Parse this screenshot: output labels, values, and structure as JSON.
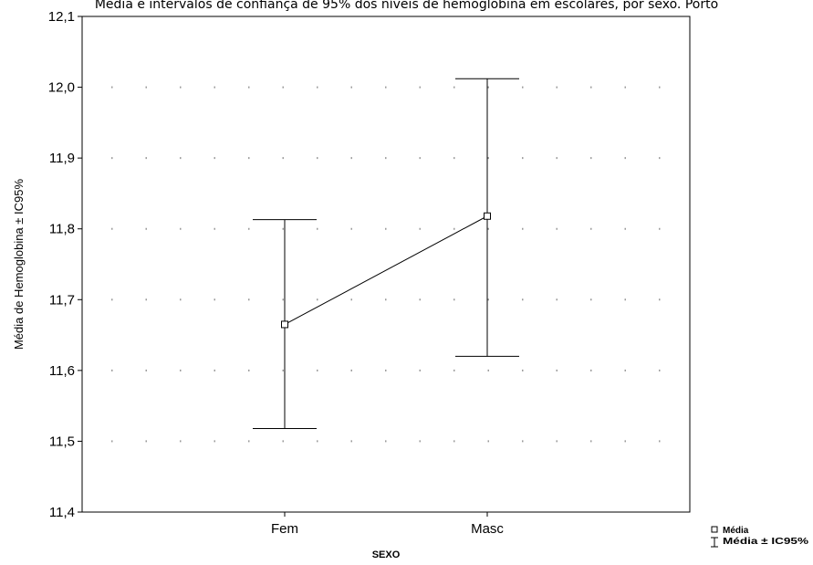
{
  "chart_data": {
    "type": "line",
    "title": "Média e intervalos de confiança de 95% dos níveis de hemoglobina em escolares, por sexo. Porto",
    "xlabel": "SEXO",
    "ylabel": "Média de Hemoglobina ± IC95%",
    "categories": [
      "Fem",
      "Masc"
    ],
    "series": [
      {
        "values": [
          11.665,
          11.818
        ],
        "lower": [
          11.518,
          11.62
        ],
        "upper": [
          11.813,
          12.012
        ]
      }
    ],
    "ylim": [
      11.4,
      12.1
    ],
    "yticks": [
      11.4,
      11.5,
      11.6,
      11.7,
      11.8,
      11.9,
      12.0,
      12.1
    ],
    "ytick_labels": [
      "11,4",
      "11,5",
      "11,6",
      "11,7",
      "11,8",
      "11,9",
      "12,0",
      "12,1"
    ],
    "grid": true,
    "legend": {
      "position": "bottom-right",
      "items": [
        {
          "symbol": "square-marker",
          "label": "Média"
        },
        {
          "symbol": "error-bar",
          "label": "Média ± IC95%"
        }
      ]
    }
  }
}
